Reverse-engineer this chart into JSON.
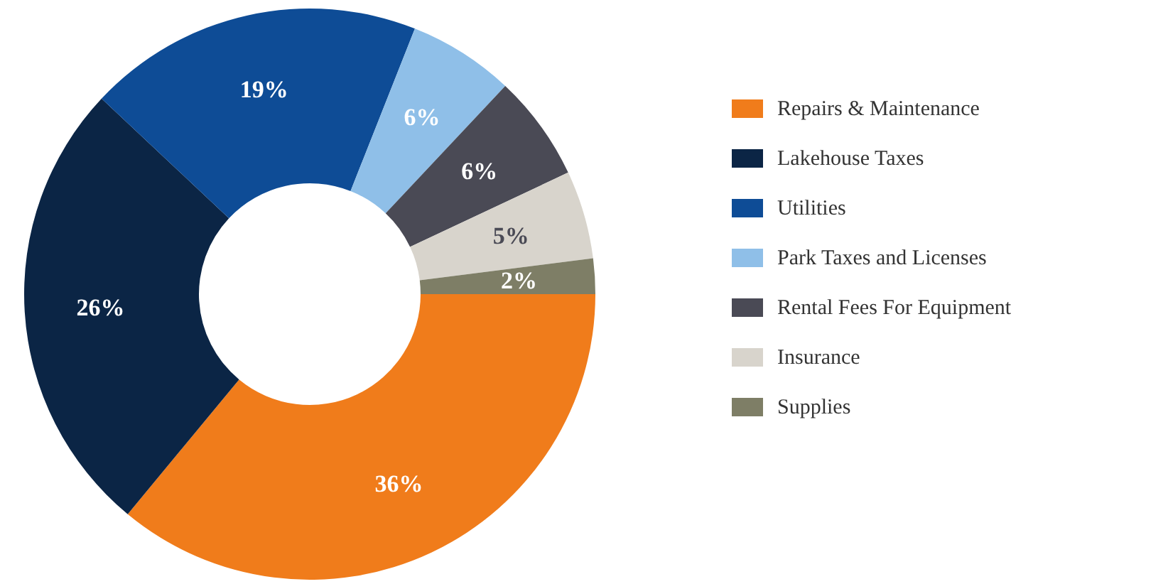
{
  "chart_data": {
    "type": "donut",
    "categories": [
      "Repairs & Maintenance",
      "Lakehouse Taxes",
      "Utilities",
      "Park Taxes and Licenses",
      "Rental Fees For Equipment",
      "Insurance",
      "Supplies"
    ],
    "values": [
      36,
      26,
      19,
      6,
      6,
      5,
      2
    ],
    "value_labels": [
      "36%",
      "26%",
      "19%",
      "6%",
      "6%",
      "5%",
      "2%"
    ],
    "colors": [
      "#f07c1b",
      "#0b2545",
      "#0e4c96",
      "#8fbfe8",
      "#4a4a55",
      "#d8d4cc",
      "#7e7e66"
    ],
    "legend": "right"
  }
}
